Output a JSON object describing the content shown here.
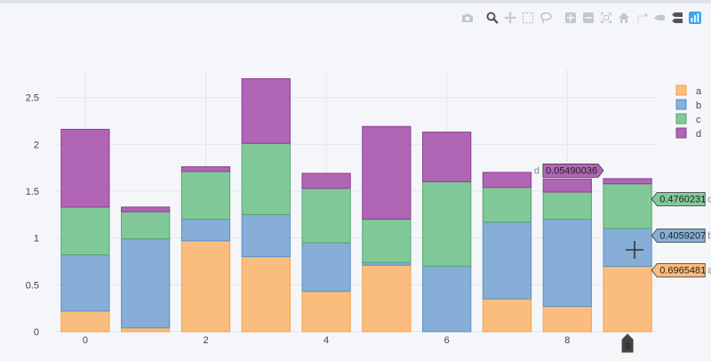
{
  "chart_data": {
    "type": "bar",
    "barmode": "stack",
    "x": [
      0,
      1,
      2,
      3,
      4,
      5,
      6,
      7,
      8,
      9
    ],
    "series": [
      {
        "name": "a",
        "color": "#fbbd7d",
        "line": "#f6a04a",
        "values": [
          0.22,
          0.04,
          0.97,
          0.8,
          0.43,
          0.71,
          0.0,
          0.35,
          0.27,
          0.6965481
        ]
      },
      {
        "name": "b",
        "color": "#86aed6",
        "line": "#5b8fc4",
        "values": [
          0.6,
          0.95,
          0.23,
          0.45,
          0.52,
          0.03,
          0.7,
          0.82,
          0.93,
          0.4059207
        ]
      },
      {
        "name": "c",
        "color": "#82c99a",
        "line": "#4ea86a",
        "values": [
          0.51,
          0.29,
          0.51,
          0.76,
          0.58,
          0.46,
          0.9,
          0.37,
          0.29,
          0.4760231
        ]
      },
      {
        "name": "d",
        "color": "#b066b4",
        "line": "#8e3d94",
        "values": [
          0.83,
          0.05,
          0.05,
          0.69,
          0.16,
          0.99,
          0.53,
          0.16,
          0.14,
          0.05490036
        ]
      }
    ],
    "xticks": [
      0,
      2,
      4,
      6,
      8
    ],
    "yticks": [
      0,
      0.5,
      1,
      1.5,
      2,
      2.5
    ],
    "ylim": [
      0,
      2.8
    ],
    "xlim": [
      -0.5,
      9.5
    ],
    "grid": true,
    "legend_position": "top-right",
    "hover": {
      "x_label": "9",
      "labels": [
        {
          "series": "d",
          "text": "0.05490036"
        },
        {
          "series": "c",
          "text": "0.4760231"
        },
        {
          "series": "b",
          "text": "0.4059207"
        },
        {
          "series": "a",
          "text": "0.6965481"
        }
      ]
    }
  },
  "modebar": [
    "camera-icon",
    "zoom-icon",
    "pan-icon",
    "box-select-icon",
    "lasso-icon",
    "zoom-in-icon",
    "zoom-out-icon",
    "autoscale-icon",
    "home-icon",
    "spike-lines-icon",
    "hover-closest-icon",
    "hover-compare-icon",
    "plotly-logo-icon"
  ]
}
